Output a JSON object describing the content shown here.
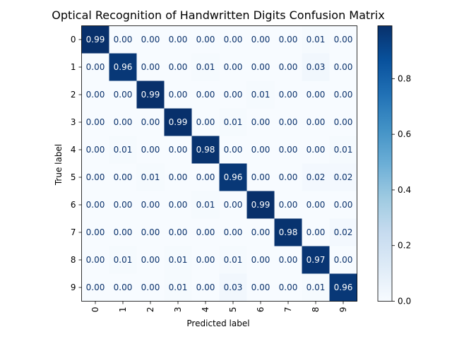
{
  "chart_data": {
    "type": "heatmap",
    "title": "Optical Recognition of Handwritten Digits Confusion Matrix",
    "xlabel": "Predicted label",
    "ylabel": "True label",
    "x_categories": [
      "0",
      "1",
      "2",
      "3",
      "4",
      "5",
      "6",
      "7",
      "8",
      "9"
    ],
    "y_categories": [
      "0",
      "1",
      "2",
      "3",
      "4",
      "5",
      "6",
      "7",
      "8",
      "9"
    ],
    "matrix": [
      [
        0.99,
        0.0,
        0.0,
        0.0,
        0.0,
        0.0,
        0.0,
        0.0,
        0.01,
        0.0
      ],
      [
        0.0,
        0.96,
        0.0,
        0.0,
        0.01,
        0.0,
        0.0,
        0.0,
        0.03,
        0.0
      ],
      [
        0.0,
        0.0,
        0.99,
        0.0,
        0.0,
        0.0,
        0.01,
        0.0,
        0.0,
        0.0
      ],
      [
        0.0,
        0.0,
        0.0,
        0.99,
        0.0,
        0.01,
        0.0,
        0.0,
        0.0,
        0.0
      ],
      [
        0.0,
        0.01,
        0.0,
        0.0,
        0.98,
        0.0,
        0.0,
        0.0,
        0.0,
        0.01
      ],
      [
        0.0,
        0.0,
        0.01,
        0.0,
        0.0,
        0.96,
        0.0,
        0.0,
        0.02,
        0.02
      ],
      [
        0.0,
        0.0,
        0.0,
        0.0,
        0.01,
        0.0,
        0.99,
        0.0,
        0.0,
        0.0
      ],
      [
        0.0,
        0.0,
        0.0,
        0.0,
        0.0,
        0.0,
        0.0,
        0.98,
        0.0,
        0.02
      ],
      [
        0.0,
        0.01,
        0.0,
        0.01,
        0.0,
        0.01,
        0.0,
        0.0,
        0.97,
        0.0
      ],
      [
        0.0,
        0.0,
        0.0,
        0.01,
        0.0,
        0.03,
        0.0,
        0.0,
        0.01,
        0.96
      ]
    ],
    "colormap": "Blues",
    "colorbar": {
      "range": [
        0.0,
        0.99
      ],
      "ticks": [
        0.0,
        0.2,
        0.4,
        0.6,
        0.8
      ],
      "tick_labels": [
        "0.0",
        "0.2",
        "0.4",
        "0.6",
        "0.8"
      ]
    },
    "cell_label_format": "0.00",
    "grid": false,
    "colors": {
      "low": "#f7fbff",
      "high": "#08306b",
      "light_text": "#ffffff",
      "dark_text": "#08306b"
    }
  }
}
